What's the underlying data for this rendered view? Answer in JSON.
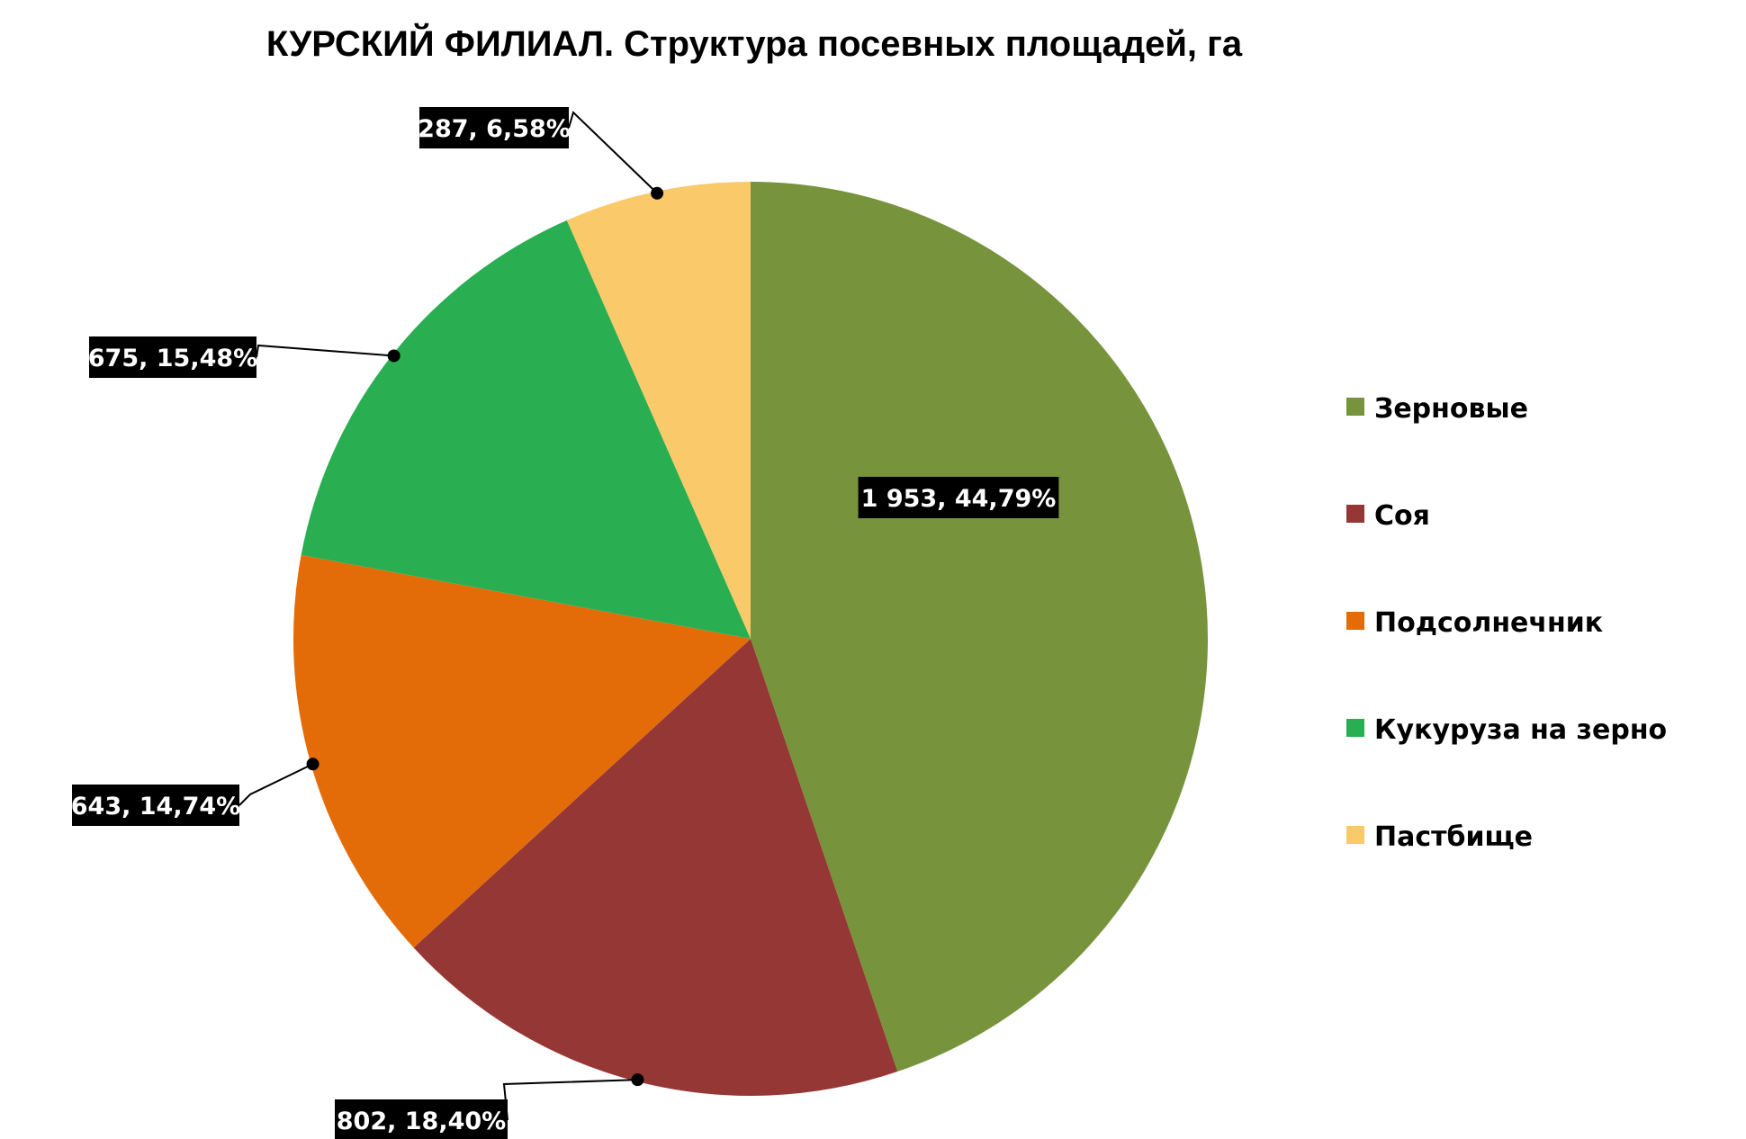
{
  "chart_data": {
    "type": "pie",
    "title": "КУРСКИЙ ФИЛИАЛ. Структура посевных площадей, га",
    "categories": [
      "Зерновые",
      "Соя",
      "Подсолнечник",
      "Кукуруза на зерно",
      "Пастбище"
    ],
    "values": [
      1953,
      802,
      643,
      675,
      287
    ],
    "data_labels": [
      "1 953,  44,79%",
      "802,  18,40%",
      "643,  14,74%",
      "675,  15,48%",
      "287,  6,58%"
    ],
    "colors": [
      "#77933C",
      "#953735",
      "#E36C09",
      "#2AAE52",
      "#FAC96A"
    ],
    "start": "12 o'clock",
    "direction": "clockwise",
    "legend_position": "right"
  }
}
